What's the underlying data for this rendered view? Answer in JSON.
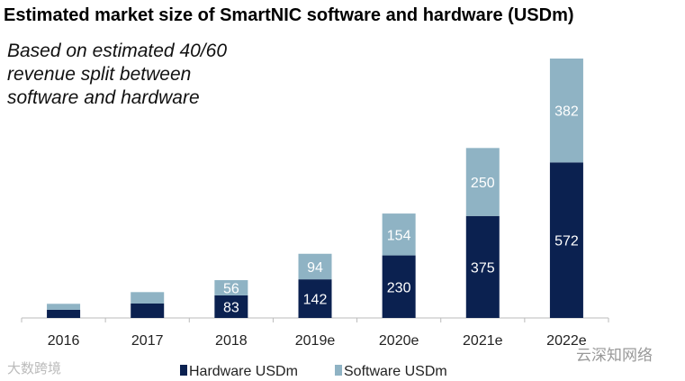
{
  "chart_data": {
    "type": "bar",
    "stacked": true,
    "title": "Estimated market size of SmartNIC software and hardware (USDm)",
    "annotation": [
      "Based on estimated 40/60",
      "revenue split between",
      "software and hardware"
    ],
    "categories": [
      "2016",
      "2017",
      "2018",
      "2019e",
      "2020e",
      "2021e",
      "2022e"
    ],
    "series": [
      {
        "name": "Hardware USDm",
        "color": "#0b2150",
        "values": [
          30,
          53,
          83,
          142,
          230,
          375,
          572
        ],
        "labels": [
          "",
          "",
          "83",
          "142",
          "230",
          "375",
          "572"
        ]
      },
      {
        "name": "Software USDm",
        "color": "#8fb3c4",
        "values": [
          22,
          42,
          56,
          94,
          154,
          250,
          382
        ],
        "labels": [
          "",
          "",
          "56",
          "94",
          "154",
          "250",
          "382"
        ]
      }
    ],
    "ylim": [
      0,
      954
    ],
    "grid": false,
    "legend": "bottom"
  },
  "watermarks": {
    "left": "大数跨境",
    "right": "云深知网络"
  }
}
